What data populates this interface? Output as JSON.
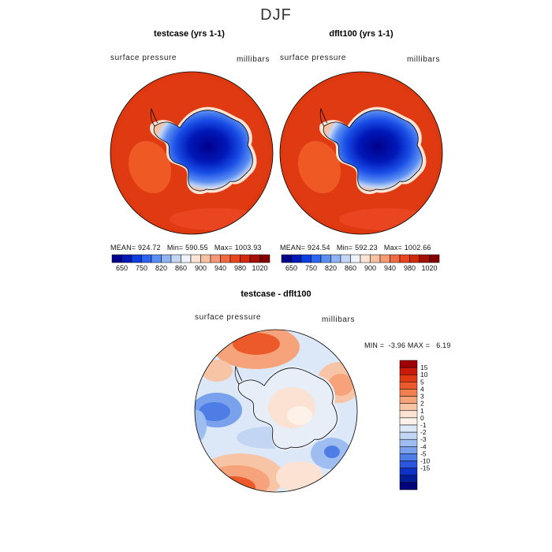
{
  "page_title": "DJF",
  "colors": {
    "ocean_high": "#dd3810",
    "ocean_mid": "#e84c1c",
    "low_core": "#00008a",
    "coast": "#000000"
  },
  "panels": [
    {
      "title": "testcase (yrs 1-1)",
      "variable": "surface pressure",
      "units": "millibars",
      "mean_label": "MEAN=",
      "mean": "924.72",
      "min_label": "Min=",
      "min": "590.55",
      "max_label": "Max=",
      "max": "1003.93"
    },
    {
      "title": "dflt100 (yrs 1-1)",
      "variable": "surface pressure",
      "units": "millibars",
      "mean_label": "MEAN=",
      "mean": "924.54",
      "min_label": "Min=",
      "min": "592.23",
      "max_label": "Max=",
      "max": "1002.66"
    }
  ],
  "diff_panel": {
    "title": "testcase - dflt100",
    "variable": "surface pressure",
    "units": "millibars",
    "min_label": "MIN =",
    "min": "-3.96",
    "max_label": "MAX =",
    "max": "6.19"
  },
  "chart_data": [
    {
      "type": "heatmap",
      "title": "testcase (yrs 1-1)",
      "projection": "south polar stereographic",
      "colorbar": {
        "orientation": "horizontal",
        "colors": [
          "#00008a",
          "#0018b8",
          "#0a3ee0",
          "#2a64f0",
          "#5a8ef2",
          "#8fb2f2",
          "#c3d6f5",
          "#eef3fb",
          "#fbe4d6",
          "#f7c2a3",
          "#f49a75",
          "#ef6a42",
          "#e84520",
          "#d42a0c",
          "#a80f04",
          "#800000"
        ],
        "tick_labels": [
          "650",
          "750",
          "820",
          "860",
          "900",
          "940",
          "980",
          "1020"
        ]
      },
      "stats": {
        "mean": 924.72,
        "min": 590.55,
        "max": 1003.93
      }
    },
    {
      "type": "heatmap",
      "title": "dflt100 (yrs 1-1)",
      "projection": "south polar stereographic",
      "colorbar": {
        "orientation": "horizontal",
        "colors": [
          "#00008a",
          "#0018b8",
          "#0a3ee0",
          "#2a64f0",
          "#5a8ef2",
          "#8fb2f2",
          "#c3d6f5",
          "#eef3fb",
          "#fbe4d6",
          "#f7c2a3",
          "#f49a75",
          "#ef6a42",
          "#e84520",
          "#d42a0c",
          "#a80f04",
          "#800000"
        ],
        "tick_labels": [
          "650",
          "750",
          "820",
          "860",
          "900",
          "940",
          "980",
          "1020"
        ]
      },
      "stats": {
        "mean": 924.54,
        "min": 592.23,
        "max": 1002.66
      }
    },
    {
      "type": "heatmap",
      "title": "testcase - dflt100",
      "projection": "south polar stereographic",
      "colorbar": {
        "orientation": "vertical",
        "colors": [
          "#a00000",
          "#c81a06",
          "#e03a12",
          "#ec5a2a",
          "#f27f4e",
          "#f6a37c",
          "#f8c4a6",
          "#fbe2d2",
          "#fdf1e8",
          "#dce8f7",
          "#c2d6f4",
          "#9ebdf0",
          "#7aa2ec",
          "#4f7de6",
          "#2a55dc",
          "#0d31c4",
          "#041c96",
          "#00007c"
        ],
        "tick_labels": [
          "15",
          "10",
          "5",
          "4",
          "3",
          "2",
          "1",
          "0",
          "-1",
          "-2",
          "-3",
          "-4",
          "-5",
          "-10",
          "-15"
        ]
      },
      "stats": {
        "min": -3.96,
        "max": 6.19
      }
    }
  ]
}
